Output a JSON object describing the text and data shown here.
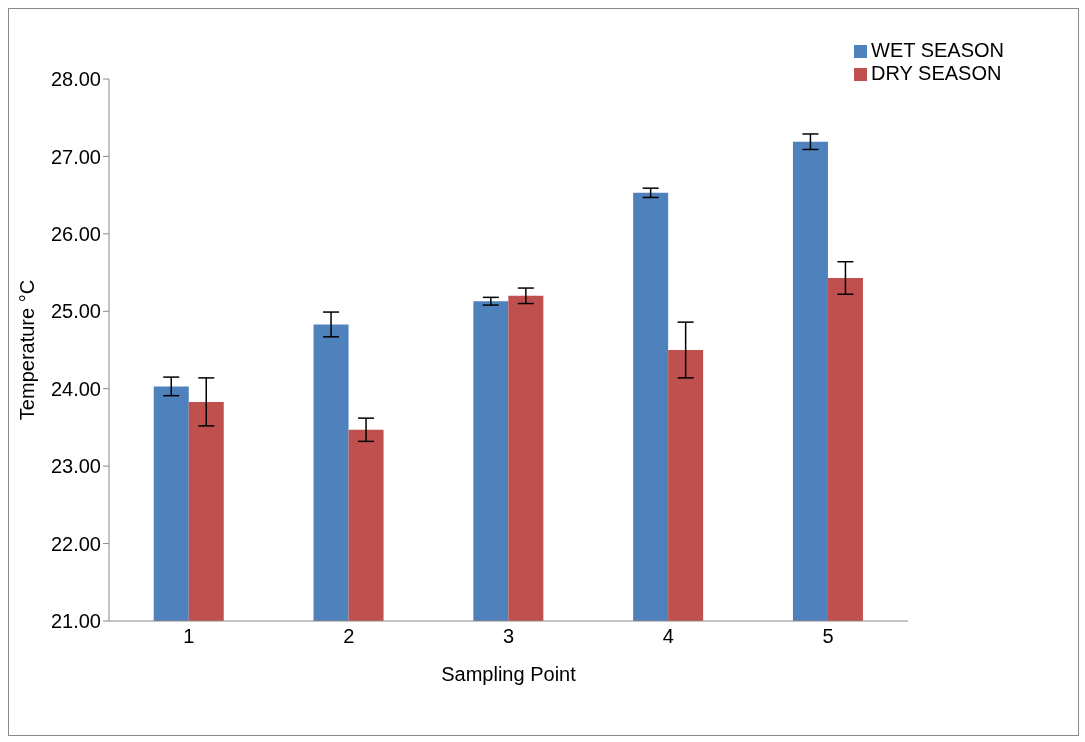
{
  "chart_data": {
    "type": "bar",
    "xlabel": "Sampling Point",
    "ylabel": "Temperature °C",
    "categories": [
      "1",
      "2",
      "3",
      "4",
      "5"
    ],
    "series": [
      {
        "name": "WET SEASON",
        "color": "#4f81bd",
        "values": [
          24.03,
          24.83,
          25.13,
          26.53,
          27.19
        ],
        "errors": [
          0.12,
          0.16,
          0.05,
          0.06,
          0.1
        ]
      },
      {
        "name": "DRY SEASON",
        "color": "#c0504d",
        "values": [
          23.83,
          23.47,
          25.2,
          24.5,
          25.43
        ],
        "errors": [
          0.31,
          0.15,
          0.1,
          0.36,
          0.21
        ]
      }
    ],
    "ylim": [
      21,
      28
    ],
    "yticks": [
      {
        "value": 21,
        "label": "21.00"
      },
      {
        "value": 22,
        "label": "22.00"
      },
      {
        "value": 23,
        "label": "23.00"
      },
      {
        "value": 24,
        "label": "24.00"
      },
      {
        "value": 25,
        "label": "25.00"
      },
      {
        "value": 26,
        "label": "26.00"
      },
      {
        "value": 27,
        "label": "27.00"
      },
      {
        "value": 28,
        "label": "28.00"
      }
    ],
    "grid": false,
    "legend": "top right"
  }
}
